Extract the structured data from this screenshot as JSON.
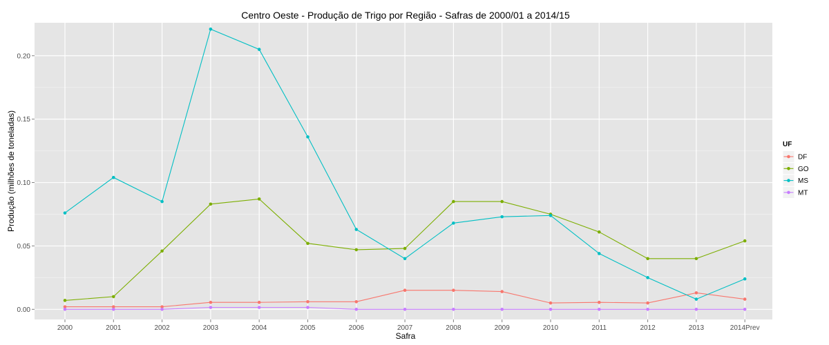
{
  "chart_data": {
    "type": "line",
    "title": "Centro Oeste  - Produção de Trigo por Região - Safras de 2000/01 a 2014/15",
    "xlabel": "Safra",
    "ylabel": "Produção (milhões de toneladas)",
    "categories": [
      "2000",
      "2001",
      "2002",
      "2003",
      "2004",
      "2005",
      "2006",
      "2007",
      "2008",
      "2009",
      "2010",
      "2011",
      "2012",
      "2013",
      "2014Prev"
    ],
    "ylim": [
      -0.008,
      0.226
    ],
    "yticks": [
      "0.00",
      "0.05",
      "0.10",
      "0.15",
      "0.20"
    ],
    "grid": true,
    "legend": {
      "title": "UF",
      "position": "right"
    },
    "series": [
      {
        "name": "DF",
        "color": "#F8766D",
        "values": [
          0.002,
          0.002,
          0.002,
          0.0055,
          0.0055,
          0.006,
          0.006,
          0.015,
          0.015,
          0.014,
          0.005,
          0.0055,
          0.005,
          0.013,
          0.008
        ]
      },
      {
        "name": "GO",
        "color": "#7CAE00",
        "values": [
          0.007,
          0.01,
          0.046,
          0.083,
          0.087,
          0.052,
          0.047,
          0.048,
          0.085,
          0.085,
          0.075,
          0.061,
          0.04,
          0.04,
          0.054
        ]
      },
      {
        "name": "MS",
        "color": "#00BFC4",
        "values": [
          0.076,
          0.104,
          0.085,
          0.221,
          0.205,
          0.136,
          0.063,
          0.04,
          0.068,
          0.073,
          0.074,
          0.044,
          0.025,
          0.008,
          0.024
        ]
      },
      {
        "name": "MT",
        "color": "#C77CFF",
        "values": [
          0.0,
          0.0,
          0.0,
          0.0015,
          0.0015,
          0.0015,
          0.0,
          0.0,
          0.0,
          0.0,
          0.0,
          0.0,
          0.0,
          0.0,
          0.0
        ]
      }
    ]
  }
}
